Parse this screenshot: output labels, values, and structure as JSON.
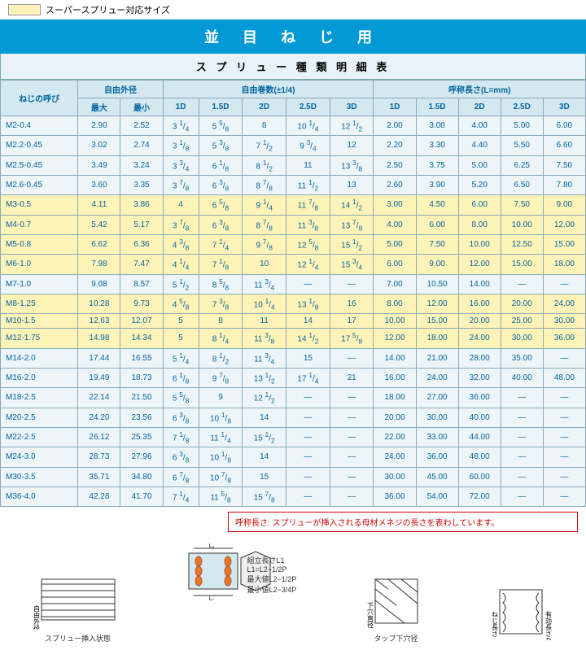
{
  "legend_label": "スーパースプリュー対応サイズ",
  "banner": "並 目 ね じ 用",
  "subtitle": "ス プ リ ュ ー 種 類 明 細 表",
  "headers": {
    "size": "ねじの呼び",
    "outer": "自由外径",
    "turns": "自由巻数(±1/4)",
    "length": "呼称長さ(L=mm)",
    "max": "最大",
    "min": "最小",
    "d1": "1D",
    "d15": "1.5D",
    "d2": "2D",
    "d25": "2.5D",
    "d3": "3D"
  },
  "rows": [
    {
      "hl": false,
      "size": "M2-0.4",
      "max": "2.90",
      "min": "2.52",
      "t": [
        "3 1/4",
        "5 5/8",
        "8",
        "10 1/4",
        "12 1/2"
      ],
      "l": [
        "2.00",
        "3.00",
        "4.00",
        "5.00",
        "6.00"
      ]
    },
    {
      "hl": false,
      "size": "M2.2-0.45",
      "max": "3.02",
      "min": "2.74",
      "t": [
        "3 1/8",
        "5 3/8",
        "7 1/2",
        "9 3/4",
        "12"
      ],
      "l": [
        "2.20",
        "3.30",
        "4.40",
        "5.50",
        "6.60"
      ]
    },
    {
      "hl": false,
      "size": "M2.5-0.45",
      "max": "3.49",
      "min": "3.24",
      "t": [
        "3 3/4",
        "6 1/8",
        "8 1/2",
        "11",
        "13 3/8"
      ],
      "l": [
        "2.50",
        "3.75",
        "5.00",
        "6.25",
        "7.50"
      ]
    },
    {
      "hl": false,
      "size": "M2.6-0.45",
      "max": "3.60",
      "min": "3.35",
      "t": [
        "3 7/8",
        "6 3/8",
        "8 7/8",
        "11 1/2",
        "13"
      ],
      "l": [
        "2.60",
        "3.90",
        "5.20",
        "6.50",
        "7.80"
      ]
    },
    {
      "hl": true,
      "size": "M3-0.5",
      "max": "4.11",
      "min": "3.86",
      "t": [
        "4",
        "6 5/8",
        "9 1/4",
        "11 7/8",
        "14 1/2"
      ],
      "l": [
        "3.00",
        "4.50",
        "6.00",
        "7.50",
        "9.00"
      ]
    },
    {
      "hl": true,
      "size": "M4-0.7",
      "max": "5.42",
      "min": "5.17",
      "t": [
        "3 7/8",
        "6 3/8",
        "8 7/8",
        "11 3/8",
        "13 7/8"
      ],
      "l": [
        "4.00",
        "6.00",
        "8.00",
        "10.00",
        "12.00"
      ]
    },
    {
      "hl": true,
      "size": "M5-0.8",
      "max": "6.62",
      "min": "6.36",
      "t": [
        "4 3/8",
        "7 1/4",
        "9 7/8",
        "12 5/8",
        "15 1/2"
      ],
      "l": [
        "5.00",
        "7.50",
        "10.00",
        "12.50",
        "15.00"
      ]
    },
    {
      "hl": true,
      "size": "M6-1.0",
      "max": "7.98",
      "min": "7.47",
      "t": [
        "4 1/4",
        "7 1/8",
        "10",
        "12 1/4",
        "15 3/4"
      ],
      "l": [
        "6.00",
        "9.00",
        "12.00",
        "15.00",
        "18.00"
      ]
    },
    {
      "hl": false,
      "size": "M7-1.0",
      "max": "9.08",
      "min": "8.57",
      "t": [
        "5 1/2",
        "8 5/8",
        "11 3/4",
        "—",
        "—"
      ],
      "l": [
        "7.00",
        "10.50",
        "14.00",
        "—",
        "—"
      ]
    },
    {
      "hl": true,
      "size": "M8-1.25",
      "max": "10.28",
      "min": "9.73",
      "t": [
        "4 5/8",
        "7 3/8",
        "10 1/4",
        "13 1/8",
        "16"
      ],
      "l": [
        "8.00",
        "12.00",
        "16.00",
        "20.00",
        "24.00"
      ]
    },
    {
      "hl": true,
      "size": "M10-1.5",
      "max": "12.63",
      "min": "12.07",
      "t": [
        "5",
        "8",
        "11",
        "14",
        "17"
      ],
      "l": [
        "10.00",
        "15.00",
        "20.00",
        "25.00",
        "30.00"
      ]
    },
    {
      "hl": true,
      "size": "M12-1.75",
      "max": "14.98",
      "min": "14.34",
      "t": [
        "5",
        "8 1/4",
        "11 3/8",
        "14 1/2",
        "17 5/8"
      ],
      "l": [
        "12.00",
        "18.00",
        "24.00",
        "30.00",
        "36.00"
      ]
    },
    {
      "hl": false,
      "size": "M14-2.0",
      "max": "17.44",
      "min": "16.55",
      "t": [
        "5 1/4",
        "8 1/2",
        "11 3/4",
        "15",
        "—"
      ],
      "l": [
        "14.00",
        "21.00",
        "28.00",
        "35.00",
        "—"
      ]
    },
    {
      "hl": false,
      "size": "M16-2.0",
      "max": "19.49",
      "min": "18.73",
      "t": [
        "6 1/8",
        "9 7/8",
        "13 1/2",
        "17 1/4",
        "21"
      ],
      "l": [
        "16.00",
        "24.00",
        "32.00",
        "40.00",
        "48.00"
      ]
    },
    {
      "hl": false,
      "size": "M18-2.5",
      "max": "22.14",
      "min": "21.50",
      "t": [
        "5 5/8",
        "9",
        "12 1/2",
        "—",
        "—"
      ],
      "l": [
        "18.00",
        "27.00",
        "36.00",
        "—",
        "—"
      ]
    },
    {
      "hl": false,
      "size": "M20-2.5",
      "max": "24.20",
      "min": "23.56",
      "t": [
        "6 3/8",
        "10 1/8",
        "14",
        "—",
        "—"
      ],
      "l": [
        "20.00",
        "30.00",
        "40.00",
        "—",
        "—"
      ]
    },
    {
      "hl": false,
      "size": "M22-2.5",
      "max": "26.12",
      "min": "25.35",
      "t": [
        "7 1/8",
        "11 1/4",
        "15 1/2",
        "—",
        "—"
      ],
      "l": [
        "22.00",
        "33.00",
        "44.00",
        "—",
        "—"
      ]
    },
    {
      "hl": false,
      "size": "M24-3.0",
      "max": "28.73",
      "min": "27.96",
      "t": [
        "6 3/8",
        "10 1/8",
        "14",
        "—",
        "—"
      ],
      "l": [
        "24.00",
        "36.00",
        "48.00",
        "—",
        "—"
      ]
    },
    {
      "hl": false,
      "size": "M30-3.5",
      "max": "35.71",
      "min": "34.80",
      "t": [
        "6 7/8",
        "10 7/8",
        "15",
        "—",
        "—"
      ],
      "l": [
        "30.00",
        "45.00",
        "60.00",
        "—",
        "—"
      ]
    },
    {
      "hl": false,
      "size": "M36-4.0",
      "max": "42.28",
      "min": "41.70",
      "t": [
        "7 1/4",
        "11 5/8",
        "15 7/8",
        "—",
        "—"
      ],
      "l": [
        "36.00",
        "54.00",
        "72.00",
        "—",
        "—"
      ]
    }
  ],
  "footnote": "呼称長さ: スプリューが挿入される母材メネジの長さを表わしています。",
  "diag1_label": "スプリュー挿入状態",
  "diag1_side": "自由外径",
  "diag2a": "組立長さL1",
  "diag2b": "L1=L2−1/2P",
  "diag2c": "最大値L2−1/2P",
  "diag2d": "最小値L2−3/4P",
  "diag3_label": "タップ下穴径",
  "diag3_side": "下穴直径",
  "diag4a": "ねじ長さ",
  "diag4b": "有効長さＤ"
}
